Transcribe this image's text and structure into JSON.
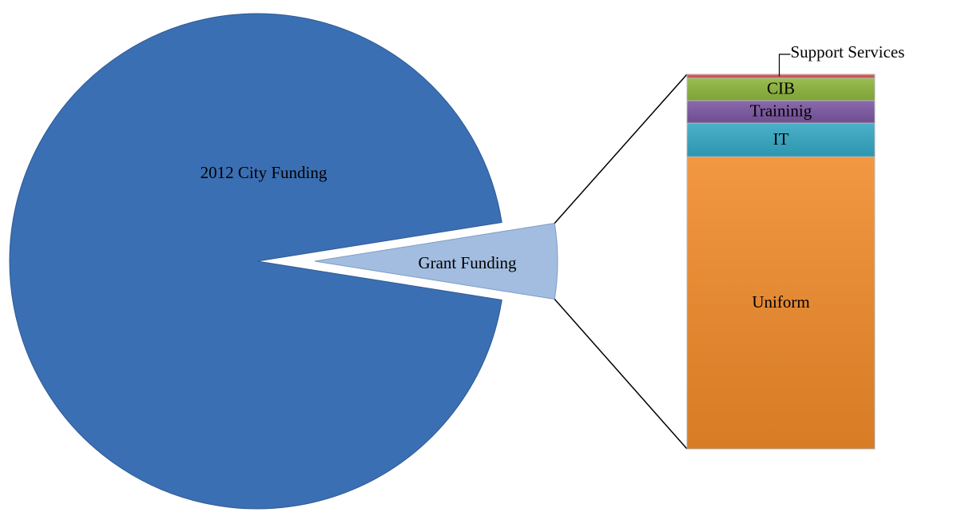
{
  "chart_data": {
    "type": "bar-of-pie",
    "categories": [
      "2012 City Funding",
      "Grant Funding"
    ],
    "values": [
      95,
      5
    ],
    "colors": [
      "#3b6fb3",
      "#a3bde0"
    ],
    "breakdown": {
      "categories": [
        "Uniform",
        "IT",
        "Traininig",
        "CIB",
        "Support Services"
      ],
      "values": [
        78,
        9,
        6,
        6,
        1
      ],
      "colors": [
        "#f08a2a",
        "#33a7c3",
        "#7b56a1",
        "#8db53c",
        "#d9534f"
      ]
    }
  }
}
